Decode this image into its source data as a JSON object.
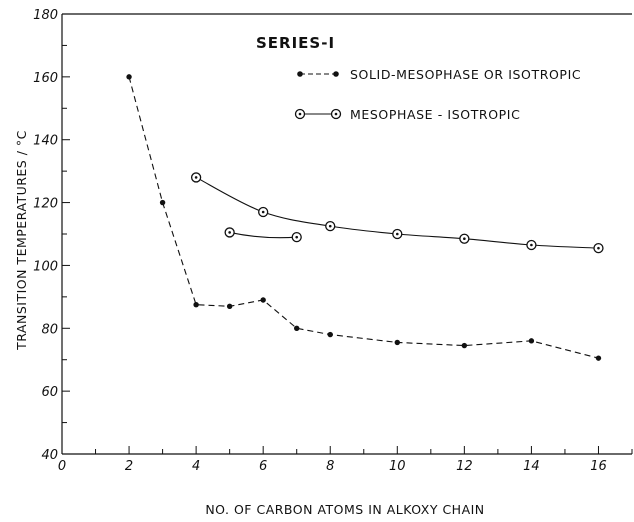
{
  "chart_data": {
    "type": "line",
    "title": "SERIES-I",
    "xlabel": "NO. OF CARBON ATOMS IN ALKOXY CHAIN",
    "ylabel": "TRANSITION TEMPERATURES / °C",
    "xlim": [
      0,
      17
    ],
    "ylim": [
      40,
      180
    ],
    "x_ticks": [
      0,
      2,
      4,
      6,
      8,
      10,
      12,
      14,
      16
    ],
    "y_ticks": [
      40,
      60,
      80,
      100,
      120,
      140,
      160,
      180
    ],
    "grid": false,
    "legend_position": "top-right",
    "series": [
      {
        "name": "SOLID-MESOPHASE OR ISOTROPIC",
        "style": "dashed-filled-dot",
        "points": [
          {
            "x": 2,
            "y": 160
          },
          {
            "x": 3,
            "y": 120
          },
          {
            "x": 4,
            "y": 87.5
          },
          {
            "x": 5,
            "y": 87
          },
          {
            "x": 6,
            "y": 89
          },
          {
            "x": 7,
            "y": 80
          },
          {
            "x": 8,
            "y": 78
          },
          {
            "x": 10,
            "y": 75.5
          },
          {
            "x": 12,
            "y": 74.5
          },
          {
            "x": 14,
            "y": 76
          },
          {
            "x": 16,
            "y": 70.5
          }
        ]
      },
      {
        "name": "MESOPHASE - ISOTROPIC",
        "style": "solid-open-circle",
        "points": [
          {
            "x": 4,
            "y": 128
          },
          {
            "x": 6,
            "y": 117
          },
          {
            "x": 8,
            "y": 112.5
          },
          {
            "x": 10,
            "y": 110
          },
          {
            "x": 12,
            "y": 108.5
          },
          {
            "x": 14,
            "y": 106.5
          },
          {
            "x": 16,
            "y": 105.5
          }
        ]
      },
      {
        "name": "",
        "style": "solid-open-circle",
        "points": [
          {
            "x": 5,
            "y": 110.5
          },
          {
            "x": 7,
            "y": 109
          }
        ]
      }
    ]
  }
}
